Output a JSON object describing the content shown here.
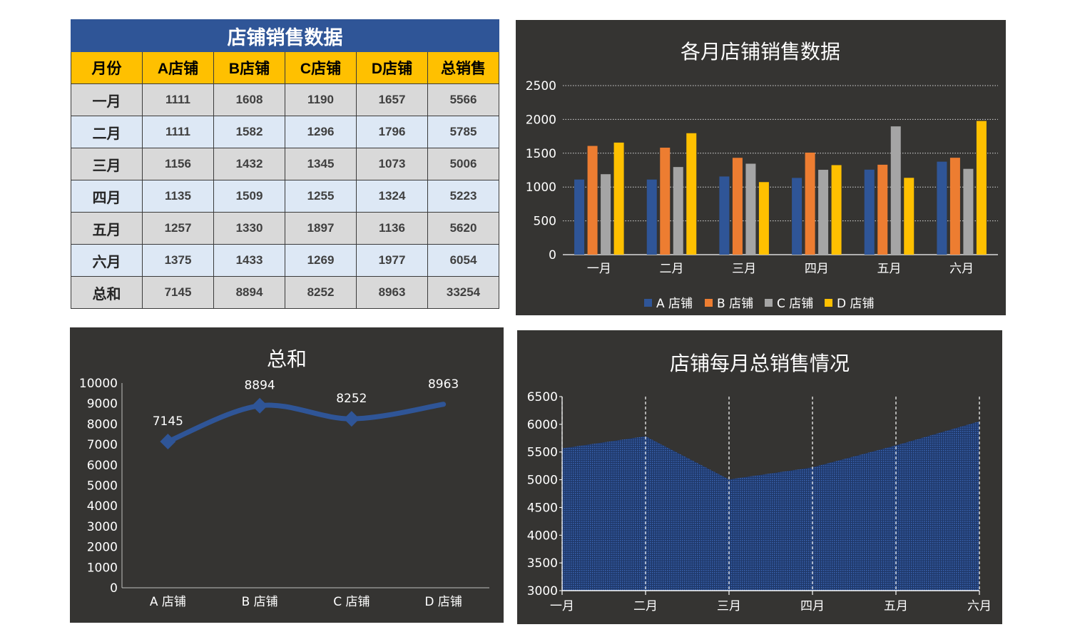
{
  "table": {
    "title": "店铺销售数据",
    "headers": [
      "月份",
      "A店铺",
      "B店铺",
      "C店铺",
      "D店铺",
      "总销售"
    ],
    "rows": [
      [
        "一月",
        "1111",
        "1608",
        "1190",
        "1657",
        "5566"
      ],
      [
        "二月",
        "1111",
        "1582",
        "1296",
        "1796",
        "5785"
      ],
      [
        "三月",
        "1156",
        "1432",
        "1345",
        "1073",
        "5006"
      ],
      [
        "四月",
        "1135",
        "1509",
        "1255",
        "1324",
        "5223"
      ],
      [
        "五月",
        "1257",
        "1330",
        "1897",
        "1136",
        "5620"
      ],
      [
        "六月",
        "1375",
        "1433",
        "1269",
        "1977",
        "6054"
      ],
      [
        "总和",
        "7145",
        "8894",
        "8252",
        "8963",
        "33254"
      ]
    ]
  },
  "colors": {
    "a": "#2f5597",
    "b": "#ed7d31",
    "c": "#a5a5a5",
    "d": "#ffc000",
    "panel": "#353432"
  },
  "chart_data": [
    {
      "type": "bar",
      "title": "各月店铺销售数据",
      "categories": [
        "一月",
        "二月",
        "三月",
        "四月",
        "五月",
        "六月"
      ],
      "series": [
        {
          "name": "A 店铺",
          "values": [
            1111,
            1111,
            1156,
            1135,
            1257,
            1375
          ]
        },
        {
          "name": "B 店铺",
          "values": [
            1608,
            1582,
            1432,
            1509,
            1330,
            1433
          ]
        },
        {
          "name": "C 店铺",
          "values": [
            1190,
            1296,
            1345,
            1255,
            1897,
            1269
          ]
        },
        {
          "name": "D 店铺",
          "values": [
            1657,
            1796,
            1073,
            1324,
            1136,
            1977
          ]
        }
      ],
      "ylim": [
        0,
        2500
      ],
      "yticks": [
        0,
        500,
        1000,
        1500,
        2000,
        2500
      ],
      "grid": "dotted horizontal",
      "legend": "bottom"
    },
    {
      "type": "line",
      "title": "总和",
      "categories": [
        "A 店铺",
        "B 店铺",
        "C 店铺",
        "D 店铺"
      ],
      "values": [
        7145,
        8894,
        8252,
        8963
      ],
      "data_labels": [
        "7145",
        "8894",
        "8252",
        "8963"
      ],
      "ylim": [
        0,
        10000
      ],
      "yticks": [
        0,
        1000,
        2000,
        3000,
        4000,
        5000,
        6000,
        7000,
        8000,
        9000,
        10000
      ],
      "smooth": true
    },
    {
      "type": "area",
      "title": "店铺每月总销售情况",
      "categories": [
        "一月",
        "二月",
        "三月",
        "四月",
        "五月",
        "六月"
      ],
      "values": [
        5566,
        5785,
        5006,
        5223,
        5620,
        6054
      ],
      "ylim": [
        3000,
        6500
      ],
      "yticks": [
        3000,
        3500,
        4000,
        4500,
        5000,
        5500,
        6000,
        6500
      ],
      "grid": "dashed vertical"
    }
  ]
}
